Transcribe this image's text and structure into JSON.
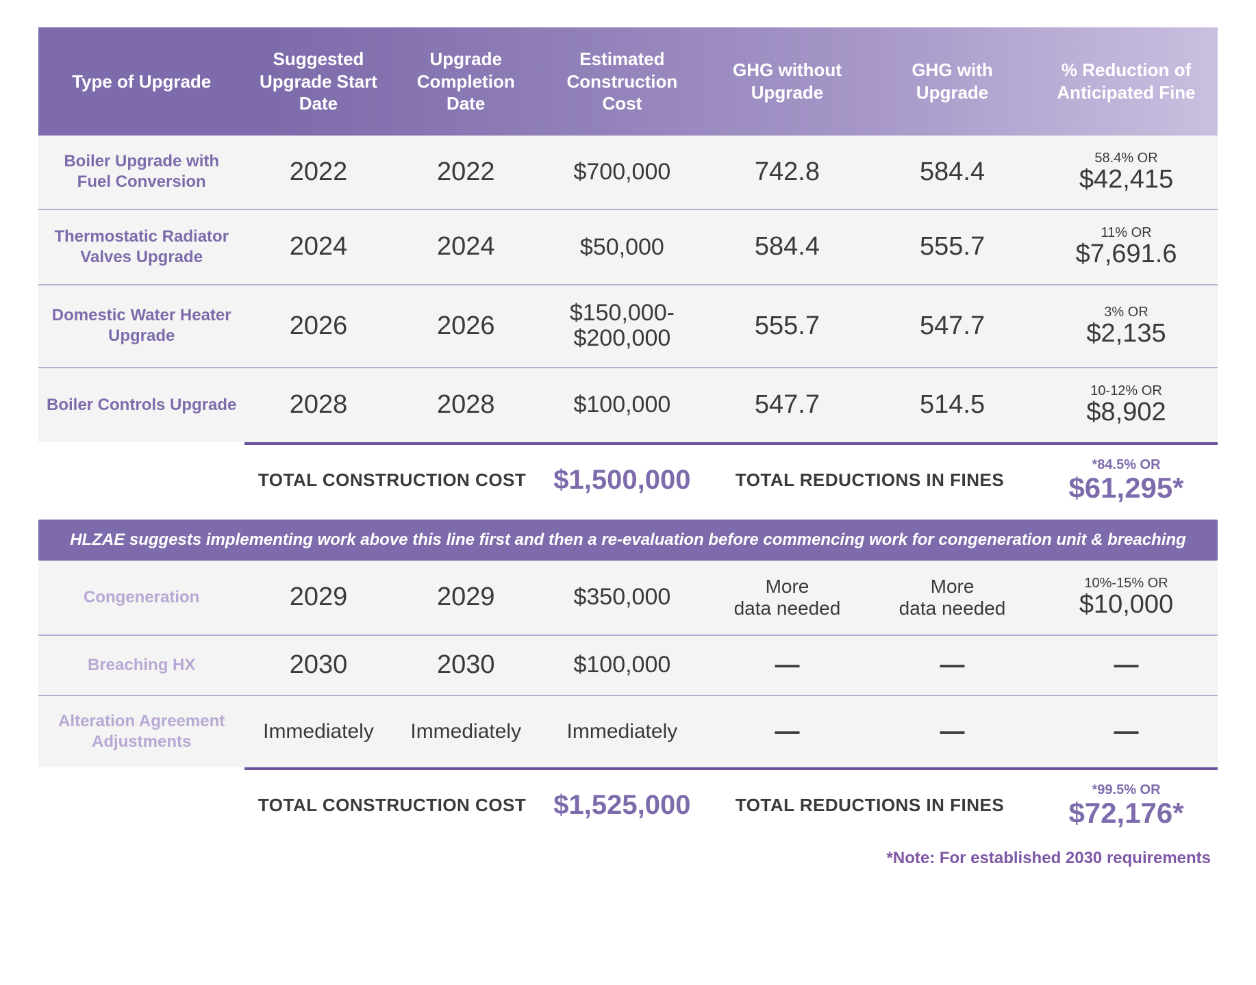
{
  "colors": {
    "header_gradient_start": "#7e6bab",
    "header_gradient_end": "#c9bfdf",
    "row_bg": "#f4f4f4",
    "row_divider": "#bca9d6",
    "subtotal_border": "#6a559d",
    "label_purple": "#7e6bab",
    "label_purple_light": "#b8a8d3",
    "text_dark": "#3a3a3a",
    "note_purple": "#7e57a5",
    "white": "#ffffff"
  },
  "typography": {
    "header_fontsize": 26,
    "type_label_fontsize": 24,
    "data_fontsize": 38,
    "cost_fontsize": 34,
    "reduction_pct_fontsize": 20,
    "reduction_amt_fontsize": 38,
    "subtotal_label_fontsize": 26,
    "subtotal_value_fontsize": 40,
    "subtotal_reduction_amt_fontsize": 42,
    "banner_fontsize": 24,
    "footnote_fontsize": 24,
    "font_family": "Helvetica Neue"
  },
  "columns": [
    "Type of Upgrade",
    "Suggested Upgrade Start Date",
    "Upgrade Completion Date",
    "Estimated Construction Cost",
    "GHG without Upgrade",
    "GHG with Upgrade",
    "% Reduction of Anticipated Fine"
  ],
  "section1": {
    "rows": [
      {
        "type": "Boiler Upgrade with Fuel Conversion",
        "start": "2022",
        "end": "2022",
        "cost": "$700,000",
        "ghg_without": "742.8",
        "ghg_with": "584.4",
        "reduction_pct": "58.4% OR",
        "reduction_amt": "$42,415"
      },
      {
        "type": "Thermostatic Radiator Valves Upgrade",
        "start": "2024",
        "end": "2024",
        "cost": "$50,000",
        "ghg_without": "584.4",
        "ghg_with": "555.7",
        "reduction_pct": "11% OR",
        "reduction_amt": "$7,691.6"
      },
      {
        "type": "Domestic Water Heater Upgrade",
        "start": "2026",
        "end": "2026",
        "cost": "$150,000-$200,000",
        "ghg_without": "555.7",
        "ghg_with": "547.7",
        "reduction_pct": "3% OR",
        "reduction_amt": "$2,135"
      },
      {
        "type": "Boiler Controls Upgrade",
        "start": "2028",
        "end": "2028",
        "cost": "$100,000",
        "ghg_without": "547.7",
        "ghg_with": "514.5",
        "reduction_pct": "10-12% OR",
        "reduction_amt": "$8,902"
      }
    ],
    "subtotal": {
      "cost_label": "TOTAL CONSTRUCTION COST",
      "cost_value": "$1,500,000",
      "fines_label": "TOTAL REDUCTIONS IN FINES",
      "reduction_pct": "*84.5% OR",
      "reduction_amt": "$61,295*"
    }
  },
  "banner_text": "HLZAE suggests implementing work above this line first and then a re-evaluation before commencing work for congeneration unit & breaching",
  "section2": {
    "rows": [
      {
        "type": "Congeneration",
        "start": "2029",
        "end": "2029",
        "cost": "$350,000",
        "ghg_without": "More data needed",
        "ghg_with": "More data needed",
        "reduction_pct": "10%-15% OR",
        "reduction_amt": "$10,000",
        "ghg_is_text": true
      },
      {
        "type": "Breaching HX",
        "start": "2030",
        "end": "2030",
        "cost": "$100,000",
        "ghg_without": "—",
        "ghg_with": "—",
        "reduction_pct": "",
        "reduction_amt": "—",
        "reduction_is_dash": true
      },
      {
        "type": "Alteration Agreement Adjustments",
        "start": "Immediately",
        "end": "Immediately",
        "cost": "Immediately",
        "ghg_without": "—",
        "ghg_with": "—",
        "reduction_pct": "",
        "reduction_amt": "—",
        "reduction_is_dash": true,
        "small_text": true
      }
    ],
    "subtotal": {
      "cost_label": "TOTAL CONSTRUCTION COST",
      "cost_value": "$1,525,000",
      "fines_label": "TOTAL REDUCTIONS IN FINES",
      "reduction_pct": "*99.5% OR",
      "reduction_amt": "$72,176*"
    }
  },
  "footnote": "*Note: For established 2030 requirements"
}
